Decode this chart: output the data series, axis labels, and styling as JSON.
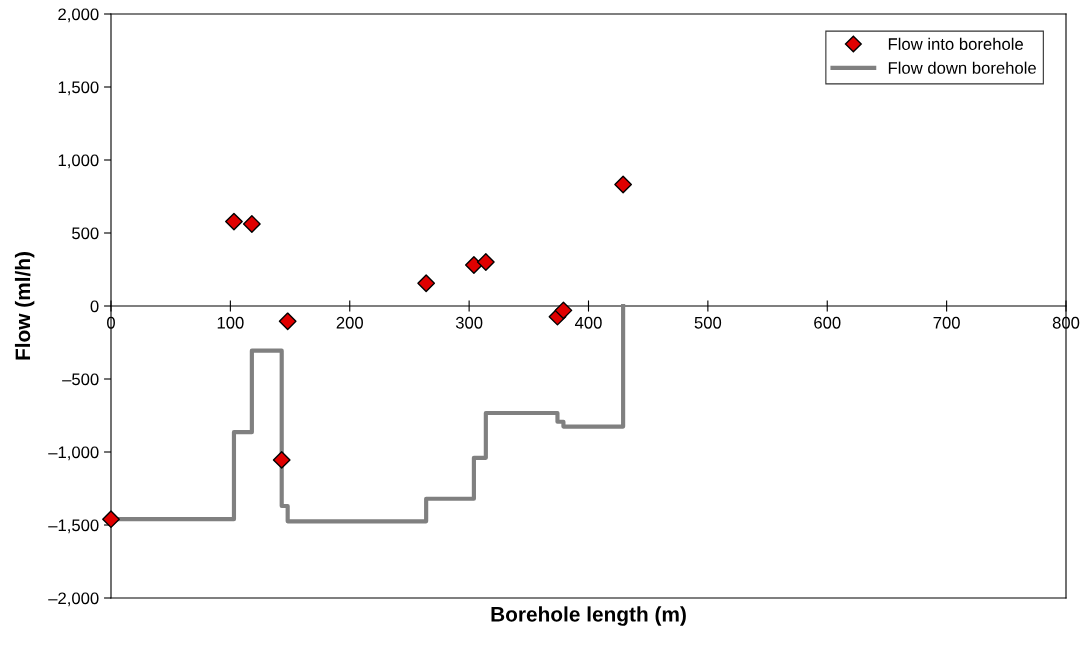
{
  "chart_data": {
    "type": "scatter",
    "xlabel": "Borehole length (m)",
    "ylabel": "Flow (ml/h)",
    "xlim": [
      0,
      800
    ],
    "xticks": [
      0,
      100,
      200,
      300,
      400,
      500,
      600,
      700,
      800
    ],
    "ylim": [
      -2000,
      2000
    ],
    "yticks": [
      {
        "value": -2000,
        "label": "–2,000"
      },
      {
        "value": -1500,
        "label": "–1,500"
      },
      {
        "value": -1000,
        "label": "–1,000"
      },
      {
        "value": -500,
        "label": "–500"
      },
      {
        "value": 0,
        "label": "0"
      },
      {
        "value": 500,
        "label": "500"
      },
      {
        "value": 1000,
        "label": "1,000"
      },
      {
        "value": 1500,
        "label": "1,500"
      },
      {
        "value": 2000,
        "label": "2,000"
      }
    ],
    "grid": false,
    "legend": "top right",
    "series": [
      {
        "name": "Flow into borehole",
        "marker": "diamond",
        "color": "#e00000",
        "x": [
          0,
          103,
          118,
          143,
          148,
          264,
          304,
          314,
          374,
          379,
          429
        ],
        "values": [
          -1460,
          578,
          562,
          -1054,
          -105,
          156,
          281,
          301,
          -73,
          -30,
          832
        ]
      },
      {
        "name": "Flow down borehole",
        "type": "step",
        "color": "#808080",
        "x": [
          0,
          103,
          118,
          143,
          148,
          264,
          304,
          314,
          374,
          379,
          429
        ],
        "values": [
          -1460,
          -864,
          -306,
          -1370,
          -1475,
          -1320,
          -1040,
          -733,
          -793,
          -826,
          0
        ]
      }
    ]
  }
}
